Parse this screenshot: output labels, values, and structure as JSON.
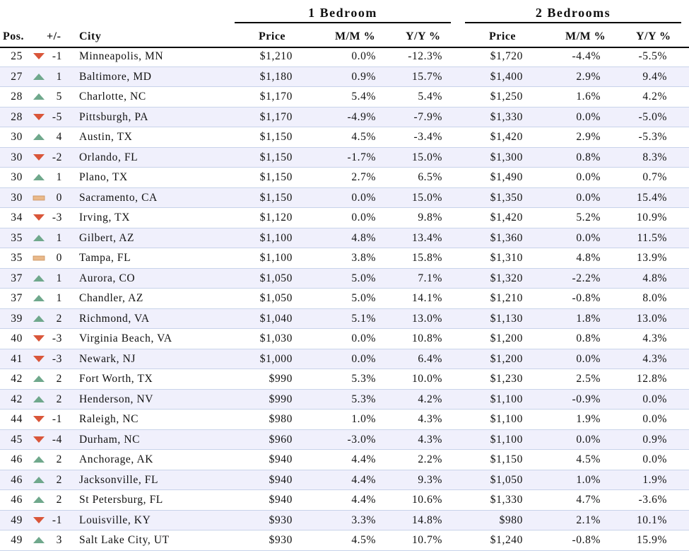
{
  "colors": {
    "up": "#6fa88c",
    "down": "#d9563a",
    "flat": "#e9b98a",
    "row_alt": "#f0f0fc",
    "row_line": "#c8d3ea"
  },
  "groups": {
    "one_bedroom": "1 Bedroom",
    "two_bedrooms": "2 Bedrooms"
  },
  "headers": {
    "pos": "Pos.",
    "change": "+/-",
    "city": "City",
    "price_1br": "Price",
    "mm_1br": "M/M %",
    "yy_1br": "Y/Y %",
    "price_2br": "Price",
    "mm_2br": "M/M %",
    "yy_2br": "Y/Y %"
  },
  "rows": [
    {
      "pos": "25",
      "dir": "down",
      "chg": "-1",
      "city": "Minneapolis, MN",
      "p1": "$1,210",
      "m1": "0.0%",
      "y1": "-12.3%",
      "p2": "$1,720",
      "m2": "-4.4%",
      "y2": "-5.5%"
    },
    {
      "pos": "27",
      "dir": "up",
      "chg": "1",
      "city": "Baltimore, MD",
      "p1": "$1,180",
      "m1": "0.9%",
      "y1": "15.7%",
      "p2": "$1,400",
      "m2": "2.9%",
      "y2": "9.4%"
    },
    {
      "pos": "28",
      "dir": "up",
      "chg": "5",
      "city": "Charlotte, NC",
      "p1": "$1,170",
      "m1": "5.4%",
      "y1": "5.4%",
      "p2": "$1,250",
      "m2": "1.6%",
      "y2": "4.2%"
    },
    {
      "pos": "28",
      "dir": "down",
      "chg": "-5",
      "city": "Pittsburgh, PA",
      "p1": "$1,170",
      "m1": "-4.9%",
      "y1": "-7.9%",
      "p2": "$1,330",
      "m2": "0.0%",
      "y2": "-5.0%"
    },
    {
      "pos": "30",
      "dir": "up",
      "chg": "4",
      "city": "Austin, TX",
      "p1": "$1,150",
      "m1": "4.5%",
      "y1": "-3.4%",
      "p2": "$1,420",
      "m2": "2.9%",
      "y2": "-5.3%"
    },
    {
      "pos": "30",
      "dir": "down",
      "chg": "-2",
      "city": "Orlando, FL",
      "p1": "$1,150",
      "m1": "-1.7%",
      "y1": "15.0%",
      "p2": "$1,300",
      "m2": "0.8%",
      "y2": "8.3%"
    },
    {
      "pos": "30",
      "dir": "up",
      "chg": "1",
      "city": "Plano, TX",
      "p1": "$1,150",
      "m1": "2.7%",
      "y1": "6.5%",
      "p2": "$1,490",
      "m2": "0.0%",
      "y2": "0.7%"
    },
    {
      "pos": "30",
      "dir": "flat",
      "chg": "0",
      "city": "Sacramento, CA",
      "p1": "$1,150",
      "m1": "0.0%",
      "y1": "15.0%",
      "p2": "$1,350",
      "m2": "0.0%",
      "y2": "15.4%"
    },
    {
      "pos": "34",
      "dir": "down",
      "chg": "-3",
      "city": "Irving, TX",
      "p1": "$1,120",
      "m1": "0.0%",
      "y1": "9.8%",
      "p2": "$1,420",
      "m2": "5.2%",
      "y2": "10.9%"
    },
    {
      "pos": "35",
      "dir": "up",
      "chg": "1",
      "city": "Gilbert, AZ",
      "p1": "$1,100",
      "m1": "4.8%",
      "y1": "13.4%",
      "p2": "$1,360",
      "m2": "0.0%",
      "y2": "11.5%"
    },
    {
      "pos": "35",
      "dir": "flat",
      "chg": "0",
      "city": "Tampa, FL",
      "p1": "$1,100",
      "m1": "3.8%",
      "y1": "15.8%",
      "p2": "$1,310",
      "m2": "4.8%",
      "y2": "13.9%"
    },
    {
      "pos": "37",
      "dir": "up",
      "chg": "1",
      "city": "Aurora, CO",
      "p1": "$1,050",
      "m1": "5.0%",
      "y1": "7.1%",
      "p2": "$1,320",
      "m2": "-2.2%",
      "y2": "4.8%"
    },
    {
      "pos": "37",
      "dir": "up",
      "chg": "1",
      "city": "Chandler, AZ",
      "p1": "$1,050",
      "m1": "5.0%",
      "y1": "14.1%",
      "p2": "$1,210",
      "m2": "-0.8%",
      "y2": "8.0%"
    },
    {
      "pos": "39",
      "dir": "up",
      "chg": "2",
      "city": "Richmond, VA",
      "p1": "$1,040",
      "m1": "5.1%",
      "y1": "13.0%",
      "p2": "$1,130",
      "m2": "1.8%",
      "y2": "13.0%"
    },
    {
      "pos": "40",
      "dir": "down",
      "chg": "-3",
      "city": "Virginia Beach, VA",
      "p1": "$1,030",
      "m1": "0.0%",
      "y1": "10.8%",
      "p2": "$1,200",
      "m2": "0.8%",
      "y2": "4.3%"
    },
    {
      "pos": "41",
      "dir": "down",
      "chg": "-3",
      "city": "Newark, NJ",
      "p1": "$1,000",
      "m1": "0.0%",
      "y1": "6.4%",
      "p2": "$1,200",
      "m2": "0.0%",
      "y2": "4.3%"
    },
    {
      "pos": "42",
      "dir": "up",
      "chg": "2",
      "city": "Fort Worth, TX",
      "p1": "$990",
      "m1": "5.3%",
      "y1": "10.0%",
      "p2": "$1,230",
      "m2": "2.5%",
      "y2": "12.8%"
    },
    {
      "pos": "42",
      "dir": "up",
      "chg": "2",
      "city": "Henderson, NV",
      "p1": "$990",
      "m1": "5.3%",
      "y1": "4.2%",
      "p2": "$1,100",
      "m2": "-0.9%",
      "y2": "0.0%"
    },
    {
      "pos": "44",
      "dir": "down",
      "chg": "-1",
      "city": "Raleigh, NC",
      "p1": "$980",
      "m1": "1.0%",
      "y1": "4.3%",
      "p2": "$1,100",
      "m2": "1.9%",
      "y2": "0.0%"
    },
    {
      "pos": "45",
      "dir": "down",
      "chg": "-4",
      "city": "Durham, NC",
      "p1": "$960",
      "m1": "-3.0%",
      "y1": "4.3%",
      "p2": "$1,100",
      "m2": "0.0%",
      "y2": "0.9%"
    },
    {
      "pos": "46",
      "dir": "up",
      "chg": "2",
      "city": "Anchorage, AK",
      "p1": "$940",
      "m1": "4.4%",
      "y1": "2.2%",
      "p2": "$1,150",
      "m2": "4.5%",
      "y2": "0.0%"
    },
    {
      "pos": "46",
      "dir": "up",
      "chg": "2",
      "city": "Jacksonville, FL",
      "p1": "$940",
      "m1": "4.4%",
      "y1": "9.3%",
      "p2": "$1,050",
      "m2": "1.0%",
      "y2": "1.9%"
    },
    {
      "pos": "46",
      "dir": "up",
      "chg": "2",
      "city": "St Petersburg, FL",
      "p1": "$940",
      "m1": "4.4%",
      "y1": "10.6%",
      "p2": "$1,330",
      "m2": "4.7%",
      "y2": "-3.6%"
    },
    {
      "pos": "49",
      "dir": "down",
      "chg": "-1",
      "city": "Louisville, KY",
      "p1": "$930",
      "m1": "3.3%",
      "y1": "14.8%",
      "p2": "$980",
      "m2": "2.1%",
      "y2": "10.1%"
    },
    {
      "pos": "49",
      "dir": "up",
      "chg": "3",
      "city": "Salt Lake City, UT",
      "p1": "$930",
      "m1": "4.5%",
      "y1": "10.7%",
      "p2": "$1,240",
      "m2": "-0.8%",
      "y2": "15.9%"
    }
  ]
}
